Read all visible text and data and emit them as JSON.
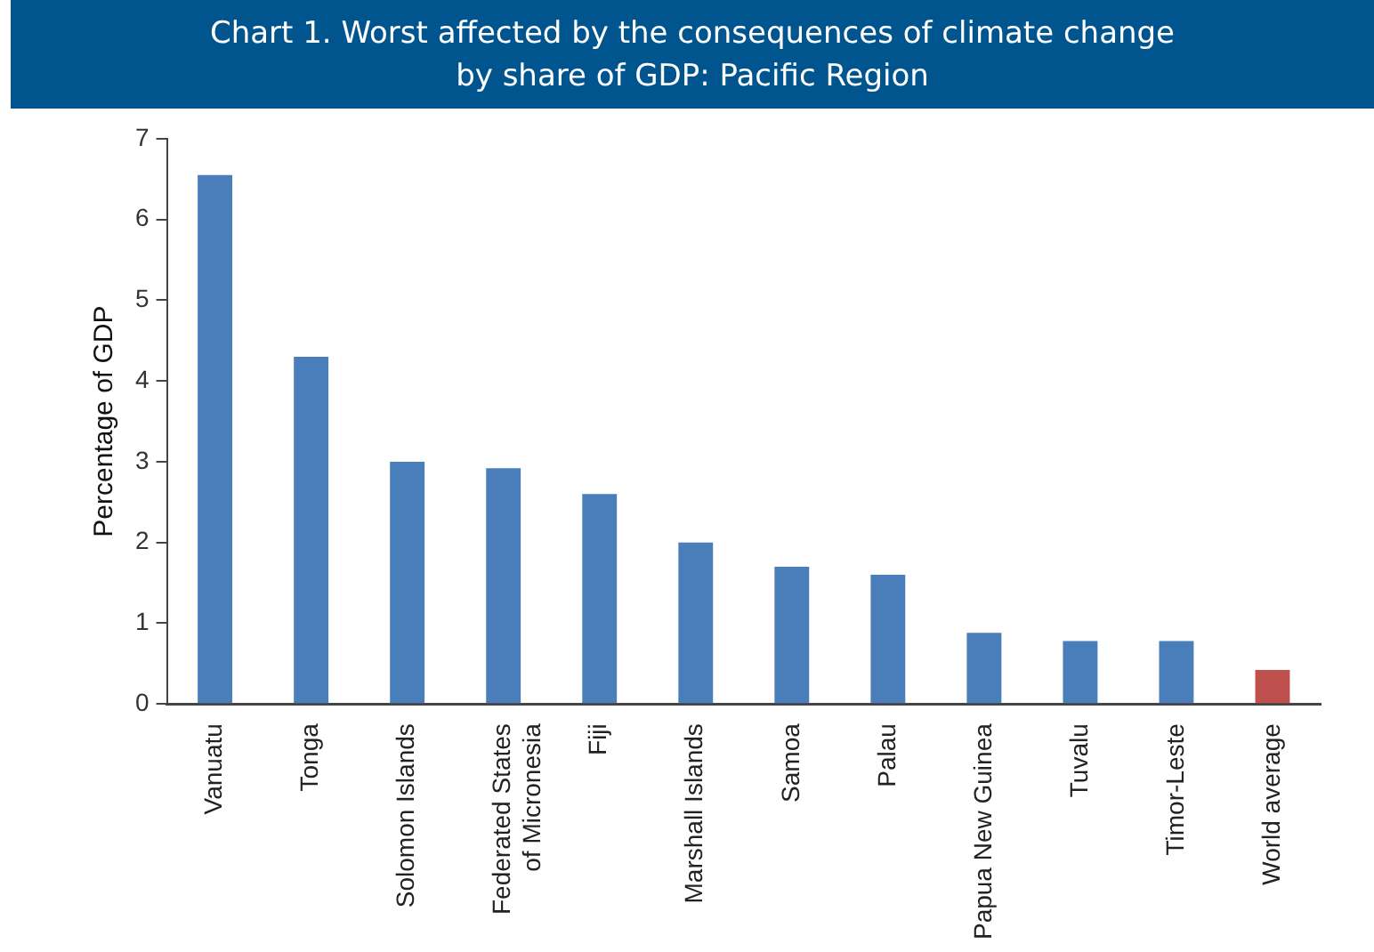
{
  "chart_data": {
    "type": "bar",
    "title": "Chart 1. Worst affected by the consequences of climate change\nby share of GDP: Pacific Region",
    "ylabel": "Percentage of GDP",
    "categories": [
      "Vanuatu",
      "Tonga",
      "Solomon Islands",
      "Federated States\nof Micronesia",
      "Fiji",
      "Marshall Islands",
      "Samoa",
      "Palau",
      "Papua New Guinea",
      "Tuvalu",
      "Timor-Leste",
      "World average"
    ],
    "values": [
      6.55,
      4.3,
      3.0,
      2.92,
      2.6,
      2.0,
      1.7,
      1.6,
      0.88,
      0.78,
      0.78,
      0.42
    ],
    "colors": [
      "#4a7ebb",
      "#4a7ebb",
      "#4a7ebb",
      "#4a7ebb",
      "#4a7ebb",
      "#4a7ebb",
      "#4a7ebb",
      "#4a7ebb",
      "#4a7ebb",
      "#4a7ebb",
      "#4a7ebb",
      "#c0504d"
    ],
    "ylim": [
      0,
      7
    ],
    "yticks": [
      0,
      1,
      2,
      3,
      4,
      5,
      6,
      7
    ],
    "grid": false,
    "legend": false
  }
}
